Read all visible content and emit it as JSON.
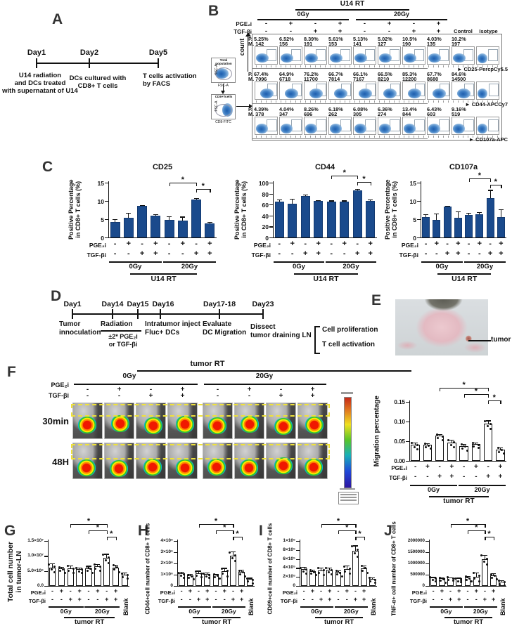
{
  "panel_a": {
    "label": "A",
    "events": [
      {
        "day": "Day1",
        "desc": "U14 radiation\nand DCs treated\nwith supernatant of U14"
      },
      {
        "day": "Day2",
        "desc": "DCs cultured with\nCD8+ T cells"
      },
      {
        "day": "Day5",
        "desc": "T cells activation\nby FACS"
      }
    ]
  },
  "panel_b": {
    "label": "B",
    "header": "U14   RT",
    "groups": [
      "0Gy",
      "20Gy"
    ],
    "pge_label": "PGE₂i",
    "tgf_label": "TGF-βi",
    "pge_signs": [
      "-",
      "+",
      "-",
      "+",
      "-",
      "+",
      "-",
      "+"
    ],
    "tgf_signs": [
      "-",
      "-",
      "+",
      "+",
      "-",
      "-",
      "+",
      "+"
    ],
    "control_label": "Control",
    "isotype_label": "Isotype",
    "count_label": "count",
    "gate1": {
      "title": "Total\npopulation",
      "x": "FSC-A",
      "y": "SSC-A"
    },
    "gate2": {
      "title": "CD8+Tcells",
      "x": "CD8-FITC",
      "y": "FSC-A"
    },
    "p_prefix": "P.",
    "m_prefix": "M.",
    "rows": [
      {
        "marker": "CD25-PercpCy5.5",
        "p": [
          "5.25%",
          "6.52%",
          "8.39%",
          "5.61%",
          "5.13%",
          "5.02%",
          "10.5%",
          "4.03%",
          "10.2%"
        ],
        "m": [
          "142",
          "156",
          "191",
          "153",
          "141",
          "127",
          "190",
          "135",
          "197"
        ]
      },
      {
        "marker": "CD44-APCCy7",
        "p": [
          "67.4%",
          "64.9%",
          "76.2%",
          "66.7%",
          "66.1%",
          "66.5%",
          "85.3%",
          "67.7%",
          "84.6%"
        ],
        "m": [
          "7096",
          "6718",
          "11700",
          "7814",
          "7167",
          "8210",
          "12200",
          "8680",
          "14500"
        ]
      },
      {
        "marker": "CD107a-APC",
        "p": [
          "4.39%",
          "4.04%",
          "8.26%",
          "6.18%",
          "6.08%",
          "6.36%",
          "13.4%",
          "6.43%",
          "9.16%"
        ],
        "m": [
          "378",
          "347",
          "696",
          "262",
          "305",
          "274",
          "844",
          "603",
          "519"
        ]
      }
    ]
  },
  "panel_c_label": "C",
  "panel_d": {
    "label": "D",
    "events": [
      {
        "day": "Day1",
        "desc": "Tumor\ninnoculation"
      },
      {
        "day": "Day14",
        "desc": "Radiation",
        "sub": "±2* PGE₂i\nor TGF-βi"
      },
      {
        "day": "Day15",
        "desc": ""
      },
      {
        "day": "Day16",
        "desc": "Intratumor inject\nFluc+ DCs"
      },
      {
        "day": "Day17-18",
        "desc": "Evaluate\nDC Migration"
      },
      {
        "day": "Day23",
        "desc": "Dissect\ntumor draining LN"
      }
    ],
    "bracket_items": [
      "Cell proliferation",
      "T cell activation"
    ]
  },
  "panel_e": {
    "label": "E",
    "annotation": "tumor"
  },
  "panel_f": {
    "label": "F",
    "header": "tumor RT",
    "groups": [
      "0Gy",
      "20Gy"
    ],
    "pge_label": "PGE₂i",
    "tgf_label": "TGF-βi",
    "pge_signs": [
      "-",
      "+",
      "-",
      "+",
      "-",
      "+",
      "-",
      "+"
    ],
    "tgf_signs": [
      "-",
      "-",
      "+",
      "+",
      "-",
      "-",
      "+",
      "+"
    ],
    "row_labels": [
      "30min",
      "48H"
    ]
  },
  "panel_letters": {
    "G": "G",
    "H": "H",
    "I": "I",
    "J": "J"
  },
  "chart_data": [
    {
      "id": "cd25",
      "type": "bar",
      "title": "CD25",
      "ylabel": "Positive  Percentage\nin CD8+ T cells (%)",
      "ylim": [
        0,
        15
      ],
      "yticks": [
        {
          "v": 0,
          "label": "0"
        },
        {
          "v": 5,
          "label": "5"
        },
        {
          "v": 10,
          "label": "10"
        },
        {
          "v": 15,
          "label": "15"
        }
      ],
      "values": [
        4.3,
        5.3,
        8.6,
        5.9,
        4.9,
        4.6,
        10.4,
        3.9
      ],
      "errors": [
        0.7,
        1.4,
        0.25,
        0.4,
        0.9,
        1.1,
        0.35,
        0.35
      ],
      "bar_fill": "#1a4a8c",
      "bar_edge": "#143a70",
      "dots": false,
      "brackets": [
        {
          "from": 4,
          "to": 6,
          "label": "*"
        },
        {
          "from": 6,
          "to": 7,
          "label": "*"
        }
      ],
      "x_rows": [
        {
          "label": "PGE₂i",
          "signs": [
            "-",
            "+",
            "-",
            "+",
            "-",
            "+",
            "-",
            "+"
          ]
        },
        {
          "label": "TGF-βi",
          "signs": [
            "-",
            "-",
            "+",
            "+",
            "-",
            "-",
            "+",
            "+"
          ]
        }
      ],
      "groups": [
        {
          "label": "0Gy",
          "from": 0,
          "to": 3
        },
        {
          "label": "20Gy",
          "from": 4,
          "to": 7
        }
      ],
      "sub_label": "U14  RT",
      "blank_label": null
    },
    {
      "id": "cd44",
      "type": "bar",
      "title": "CD44",
      "ylabel": "Positive  Percentage\nin CD8+ T cells (%)",
      "ylim": [
        0,
        100
      ],
      "yticks": [
        {
          "v": 0,
          "label": "0"
        },
        {
          "v": 20,
          "label": "20"
        },
        {
          "v": 40,
          "label": "40"
        },
        {
          "v": 60,
          "label": "60"
        },
        {
          "v": 80,
          "label": "80"
        },
        {
          "v": 100,
          "label": "100"
        }
      ],
      "values": [
        65,
        62,
        76,
        67,
        66,
        66,
        86,
        67
      ],
      "errors": [
        4,
        9,
        2,
        1.5,
        1.5,
        1.5,
        3,
        2
      ],
      "bar_fill": "#1a4a8c",
      "bar_edge": "#143a70",
      "dots": false,
      "brackets": [
        {
          "from": 4,
          "to": 6,
          "label": "*"
        },
        {
          "from": 6,
          "to": 7,
          "label": "*"
        }
      ],
      "x_rows": [
        {
          "label": "PGE₂i",
          "signs": [
            "-",
            "+",
            "-",
            "+",
            "-",
            "+",
            "-",
            "+"
          ]
        },
        {
          "label": "TGF-βi",
          "signs": [
            "-",
            "-",
            "+",
            "+",
            "-",
            "-",
            "+",
            "+"
          ]
        }
      ],
      "groups": [
        {
          "label": "0Gy",
          "from": 0,
          "to": 3
        },
        {
          "label": "20Gy",
          "from": 4,
          "to": 7
        }
      ],
      "sub_label": "U14  RT",
      "blank_label": null
    },
    {
      "id": "cd107a",
      "type": "bar",
      "title": "CD107a",
      "ylabel": "Positive  Percentage\nin CD8+ T cells (%)",
      "ylim": [
        0,
        15
      ],
      "yticks": [
        {
          "v": 0,
          "label": "0"
        },
        {
          "v": 5,
          "label": "5"
        },
        {
          "v": 10,
          "label": "10"
        },
        {
          "v": 15,
          "label": "15"
        }
      ],
      "values": [
        5.5,
        4.9,
        8.4,
        5.3,
        6.1,
        6.4,
        10.8,
        5.6
      ],
      "errors": [
        0.9,
        1.6,
        0.3,
        1.8,
        0.7,
        0.6,
        2.2,
        2.1
      ],
      "bar_fill": "#1a4a8c",
      "bar_edge": "#143a70",
      "dots": false,
      "brackets": [
        {
          "from": 4,
          "to": 6,
          "label": "*"
        },
        {
          "from": 6,
          "to": 7,
          "label": "*"
        }
      ],
      "x_rows": [
        {
          "label": "PGE₂i",
          "signs": [
            "-",
            "+",
            "-",
            "+",
            "-",
            "+",
            "-",
            "+"
          ]
        },
        {
          "label": "TGF-βi",
          "signs": [
            "-",
            "-",
            "+",
            "+",
            "-",
            "-",
            "+",
            "+"
          ]
        }
      ],
      "groups": [
        {
          "label": "0Gy",
          "from": 0,
          "to": 3
        },
        {
          "label": "20Gy",
          "from": 4,
          "to": 7
        }
      ],
      "sub_label": "U14  RT",
      "blank_label": null
    },
    {
      "id": "migration",
      "type": "bar",
      "title": "",
      "ylabel": "Migration  percentage",
      "ylim": [
        0,
        0.15
      ],
      "yticks": [
        {
          "v": 0,
          "label": "0.00"
        },
        {
          "v": 0.05,
          "label": "0.05"
        },
        {
          "v": 0.1,
          "label": "0.10"
        },
        {
          "v": 0.15,
          "label": "0.15"
        }
      ],
      "values": [
        0.041,
        0.041,
        0.064,
        0.047,
        0.037,
        0.043,
        0.094,
        0.029
      ],
      "errors": [
        0.006,
        0.004,
        0.004,
        0.007,
        0.006,
        0.004,
        0.009,
        0.005
      ],
      "bar_fill": "#ffffff",
      "bar_edge": "#111111",
      "dots": true,
      "brackets": [
        {
          "from": 2,
          "to": 6,
          "label": "*"
        },
        {
          "from": 4,
          "to": 6,
          "label": "*"
        },
        {
          "from": 6,
          "to": 7,
          "label": "*"
        }
      ],
      "x_rows": [
        {
          "label": "PGE₂i",
          "signs": [
            "-",
            "+",
            "-",
            "+",
            "-",
            "+",
            "-",
            "+"
          ]
        },
        {
          "label": "TGF-βi",
          "signs": [
            "-",
            "-",
            "+",
            "+",
            "-",
            "-",
            "+",
            "+"
          ]
        }
      ],
      "groups": [
        {
          "label": "0Gy",
          "from": 0,
          "to": 3
        },
        {
          "label": "20Gy",
          "from": 4,
          "to": 7
        }
      ],
      "sub_label": "tumor RT",
      "blank_label": null
    },
    {
      "id": "g_total",
      "type": "bar",
      "title": "",
      "ylabel": "Total cell number\nin tumor-LN",
      "ylim": [
        0,
        15000000
      ],
      "yticks": [
        {
          "v": 0,
          "label": "0.0"
        },
        {
          "v": 5000000,
          "label": "5.0×10⁶"
        },
        {
          "v": 10000000,
          "label": "1.0×10⁷"
        },
        {
          "v": 15000000,
          "label": "1.5×10⁷"
        }
      ],
      "values": [
        6200000,
        5800000,
        5900000,
        5700000,
        5900000,
        6500000,
        9300000,
        6200000,
        3800000
      ],
      "errors": [
        1300000,
        600000,
        900000,
        500000,
        800000,
        800000,
        1400000,
        900000,
        600000
      ],
      "bar_fill": "#ffffff",
      "bar_edge": "#111111",
      "dots": true,
      "brackets": [
        {
          "from": 2,
          "to": 6,
          "label": "*"
        },
        {
          "from": 4,
          "to": 6,
          "label": "*"
        },
        {
          "from": 6,
          "to": 7,
          "label": "*"
        }
      ],
      "x_rows": [
        {
          "label": "PGE₂i",
          "signs": [
            "-",
            "+",
            "-",
            "+",
            "-",
            "+",
            "-",
            "+"
          ]
        },
        {
          "label": "TGF-βi",
          "signs": [
            "-",
            "-",
            "+",
            "+",
            "-",
            "-",
            "+",
            "+"
          ]
        }
      ],
      "groups": [
        {
          "label": "0Gy",
          "from": 0,
          "to": 3
        },
        {
          "label": "20Gy",
          "from": 4,
          "to": 7
        }
      ],
      "sub_label": "tumor RT",
      "blank_label": "Blank"
    },
    {
      "id": "h_cd44",
      "type": "bar",
      "title": "",
      "ylabel": "CD44+cell number of CD8+ T cells",
      "ylim": [
        0,
        4000000
      ],
      "yticks": [
        {
          "v": 0,
          "label": "0"
        },
        {
          "v": 1000000,
          "label": "1×10⁶"
        },
        {
          "v": 2000000,
          "label": "2×10⁶"
        },
        {
          "v": 3000000,
          "label": "3×10⁶"
        },
        {
          "v": 4000000,
          "label": "4×10⁶"
        }
      ],
      "values": [
        1100000,
        950000,
        1150000,
        1050000,
        1000000,
        1300000,
        2700000,
        1250000,
        600000
      ],
      "errors": [
        150000,
        100000,
        200000,
        120000,
        80000,
        300000,
        350000,
        180000,
        120000
      ],
      "bar_fill": "#ffffff",
      "bar_edge": "#111111",
      "dots": true,
      "brackets": [
        {
          "from": 2,
          "to": 6,
          "label": "*"
        },
        {
          "from": 4,
          "to": 6,
          "label": "*"
        },
        {
          "from": 6,
          "to": 7,
          "label": "*"
        }
      ],
      "x_rows": [
        {
          "label": "PGE₂i",
          "signs": [
            "-",
            "+",
            "-",
            "+",
            "-",
            "+",
            "-",
            "+"
          ]
        },
        {
          "label": "TGF-βi",
          "signs": [
            "-",
            "-",
            "+",
            "+",
            "-",
            "-",
            "+",
            "+"
          ]
        }
      ],
      "groups": [
        {
          "label": "0Gy",
          "from": 0,
          "to": 3
        },
        {
          "label": "20Gy",
          "from": 4,
          "to": 7
        }
      ],
      "sub_label": "tumor RT",
      "blank_label": "Blank"
    },
    {
      "id": "i_cd69",
      "type": "bar",
      "title": "",
      "ylabel": "CD69+cell number of CD8+ T cells",
      "ylim": [
        0,
        1000000
      ],
      "yticks": [
        {
          "v": 0,
          "label": "0"
        },
        {
          "v": 200000,
          "label": "2×10⁵"
        },
        {
          "v": 400000,
          "label": "4×10⁵"
        },
        {
          "v": 600000,
          "label": "6×10⁵"
        },
        {
          "v": 800000,
          "label": "8×10⁵"
        },
        {
          "v": 1000000,
          "label": "1×10⁶"
        }
      ],
      "values": [
        370000,
        330000,
        350000,
        360000,
        310000,
        380000,
        780000,
        390000,
        160000
      ],
      "errors": [
        50000,
        30000,
        60000,
        50000,
        40000,
        70000,
        120000,
        70000,
        30000
      ],
      "bar_fill": "#ffffff",
      "bar_edge": "#111111",
      "dots": true,
      "brackets": [
        {
          "from": 2,
          "to": 6,
          "label": "*"
        },
        {
          "from": 4,
          "to": 6,
          "label": "*"
        },
        {
          "from": 6,
          "to": 7,
          "label": "*"
        }
      ],
      "x_rows": [
        {
          "label": "PGE₂i",
          "signs": [
            "-",
            "+",
            "-",
            "+",
            "-",
            "+",
            "-",
            "+"
          ]
        },
        {
          "label": "TGF-βi",
          "signs": [
            "-",
            "-",
            "+",
            "+",
            "-",
            "-",
            "+",
            "+"
          ]
        }
      ],
      "groups": [
        {
          "label": "0Gy",
          "from": 0,
          "to": 3
        },
        {
          "label": "20Gy",
          "from": 4,
          "to": 7
        }
      ],
      "sub_label": "tumor RT",
      "blank_label": "Blank"
    },
    {
      "id": "j_tnf",
      "type": "bar",
      "title": "",
      "ylabel": "TNF-α+ cell number of CD8+ T cells",
      "ylim": [
        0,
        2000000
      ],
      "yticks": [
        {
          "v": 0,
          "label": "0"
        },
        {
          "v": 500000,
          "label": "500000"
        },
        {
          "v": 1000000,
          "label": "1000000"
        },
        {
          "v": 1500000,
          "label": "1500000"
        },
        {
          "v": 2000000,
          "label": "2000000"
        }
      ],
      "values": [
        370000,
        330000,
        390000,
        330000,
        390000,
        420000,
        1180000,
        480000,
        200000
      ],
      "errors": [
        40000,
        60000,
        30000,
        40000,
        50000,
        180000,
        200000,
        80000,
        60000
      ],
      "bar_fill": "#ffffff",
      "bar_edge": "#111111",
      "dots": true,
      "brackets": [
        {
          "from": 2,
          "to": 6,
          "label": "*"
        },
        {
          "from": 4,
          "to": 6,
          "label": "*"
        },
        {
          "from": 6,
          "to": 7,
          "label": "*"
        }
      ],
      "x_rows": [
        {
          "label": "PGE₂i",
          "signs": [
            "-",
            "+",
            "-",
            "+",
            "-",
            "+",
            "-",
            "+"
          ]
        },
        {
          "label": "TGF-βi",
          "signs": [
            "-",
            "-",
            "+",
            "+",
            "-",
            "-",
            "+",
            "+"
          ]
        }
      ],
      "groups": [
        {
          "label": "0Gy",
          "from": 0,
          "to": 3
        },
        {
          "label": "20Gy",
          "from": 4,
          "to": 7
        }
      ],
      "sub_label": "tumor RT",
      "blank_label": "Blank"
    }
  ]
}
